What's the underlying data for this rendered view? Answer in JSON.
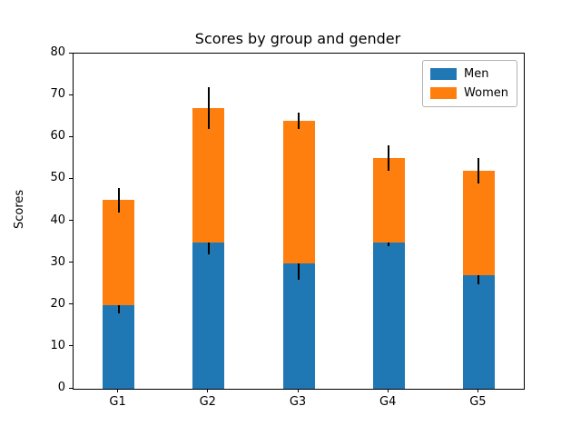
{
  "chart_data": {
    "type": "bar",
    "stacked": true,
    "title": "Scores by group and gender",
    "ylabel": "Scores",
    "xlabel": "",
    "categories": [
      "G1",
      "G2",
      "G3",
      "G4",
      "G5"
    ],
    "series": [
      {
        "name": "Men",
        "color": "#1f77b4",
        "values": [
          20,
          35,
          30,
          35,
          27
        ],
        "errors": [
          2,
          3,
          4,
          1,
          2
        ]
      },
      {
        "name": "Women",
        "color": "#ff7f0e",
        "values": [
          25,
          32,
          34,
          20,
          25
        ],
        "errors": [
          3,
          5,
          2,
          3,
          3
        ]
      }
    ],
    "totals": [
      45,
      67,
      64,
      55,
      52
    ],
    "ylim": [
      0,
      80
    ],
    "yticks": [
      0,
      10,
      20,
      30,
      40,
      50,
      60,
      70,
      80
    ],
    "grid": false,
    "legend_position": "upper right",
    "error_bar_color": "#000000",
    "axes_color": "#000000",
    "background_color": "#ffffff"
  }
}
